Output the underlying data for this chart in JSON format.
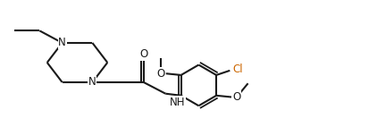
{
  "bg_color": "#ffffff",
  "line_color": "#1a1a1a",
  "cl_color": "#cc6600",
  "line_width": 1.5,
  "font_size": 8.5,
  "fig_width": 4.22,
  "fig_height": 1.42,
  "xlim": [
    0,
    10
  ],
  "ylim": [
    0,
    3.35
  ]
}
